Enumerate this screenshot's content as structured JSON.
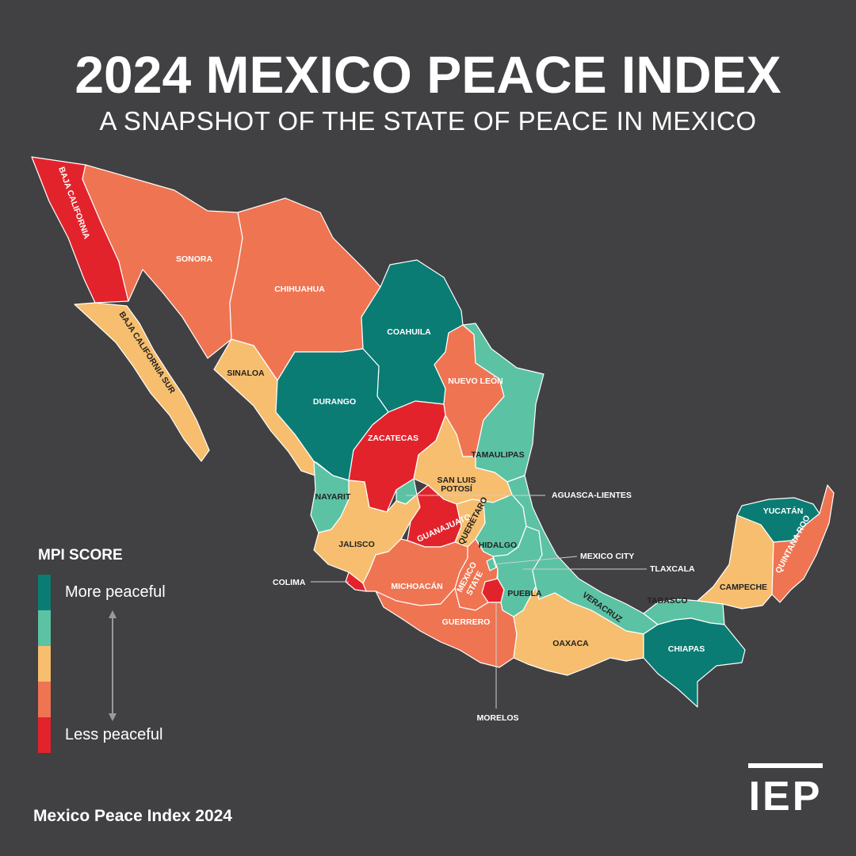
{
  "title": "2024 MEXICO PEACE INDEX",
  "subtitle": "A SNAPSHOT OF THE STATE OF PEACE IN MEXICO",
  "colors": {
    "background": "#414042",
    "level_1_more_peaceful": "#0a7c74",
    "level_2": "#5cc2a4",
    "level_3": "#f6be6e",
    "level_4": "#ef7452",
    "level_5_less_peaceful": "#e2232c"
  },
  "legend": {
    "title": "MPI SCORE",
    "more_label": "More peaceful",
    "less_label": "Less peaceful"
  },
  "states": {
    "baja_california": {
      "name": "BAJA CALIFORNIA",
      "level": 5
    },
    "baja_california_sur": {
      "name": "BAJA CALIFORNIA SUR",
      "level": 3
    },
    "sonora": {
      "name": "SONORA",
      "level": 4
    },
    "chihuahua": {
      "name": "CHIHUAHUA",
      "level": 4
    },
    "coahuila": {
      "name": "COAHUILA",
      "level": 1
    },
    "nuevo_leon": {
      "name": "NUEVO LEÓN",
      "level": 4
    },
    "tamaulipas": {
      "name": "TAMAULIPAS",
      "level": 2
    },
    "sinaloa": {
      "name": "SINALOA",
      "level": 3
    },
    "durango": {
      "name": "DURANGO",
      "level": 1
    },
    "zacatecas": {
      "name": "ZACATECAS",
      "level": 5
    },
    "san_luis_potosi": {
      "name": "SAN LUIS POTOSÍ",
      "level": 3
    },
    "aguascalientes": {
      "name": "AGUASCA-LIENTES",
      "level": 2
    },
    "nayarit": {
      "name": "NAYARIT",
      "level": 2
    },
    "jalisco": {
      "name": "JALISCO",
      "level": 3
    },
    "guanajuato": {
      "name": "GUANAJUATO",
      "level": 5
    },
    "queretaro": {
      "name": "QUERÉTARO",
      "level": 3
    },
    "hidalgo": {
      "name": "HIDALGO",
      "level": 2
    },
    "mexico_city": {
      "name": "MEXICO CITY",
      "level": 2
    },
    "tlaxcala": {
      "name": "TLAXCALA",
      "level": 1
    },
    "colima": {
      "name": "COLIMA",
      "level": 5
    },
    "michoacan": {
      "name": "MICHOACÁN",
      "level": 4
    },
    "mexico_state": {
      "name": "MEXICO STATE",
      "level": 4
    },
    "morelos": {
      "name": "MORELOS",
      "level": 5
    },
    "puebla": {
      "name": "PUEBLA",
      "level": 2
    },
    "veracruz": {
      "name": "VERACRUZ",
      "level": 2
    },
    "guerrero": {
      "name": "GUERRERO",
      "level": 4
    },
    "oaxaca": {
      "name": "OAXACA",
      "level": 3
    },
    "tabasco": {
      "name": "TABASCO",
      "level": 2
    },
    "chiapas": {
      "name": "CHIAPAS",
      "level": 1
    },
    "campeche": {
      "name": "CAMPECHE",
      "level": 3
    },
    "yucatan": {
      "name": "YUCATÁN",
      "level": 1
    },
    "quintana_roo": {
      "name": "QUINTANA ROO",
      "level": 4
    }
  },
  "footer": "Mexico Peace Index 2024",
  "logo_text": "IEP"
}
